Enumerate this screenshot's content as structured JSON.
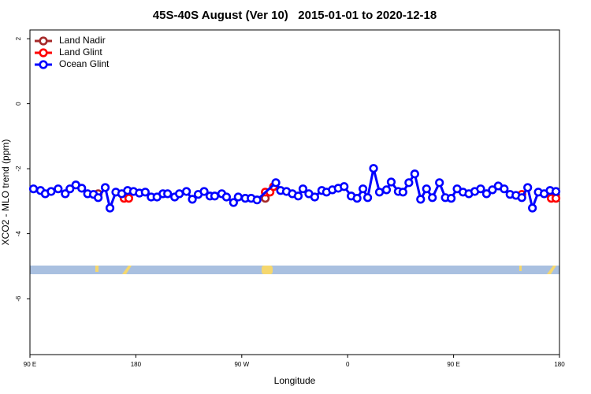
{
  "chart_data": {
    "type": "line",
    "title": "45S-40S August (Ver 10)   2015-01-01 to 2020-12-18",
    "x_label": "Longitude",
    "y_label": "XCO2 - MLO trend (ppm)",
    "xlim": [
      90,
      540
    ],
    "xticks": [
      {
        "value": 90,
        "label": "90 E"
      },
      {
        "value": 180,
        "label": "180"
      },
      {
        "value": 270,
        "label": "90 W"
      },
      {
        "value": 360,
        "label": "0"
      },
      {
        "value": 450,
        "label": "90 E"
      },
      {
        "value": 540,
        "label": "180"
      }
    ],
    "ylim": [
      -7.72,
      2.27
    ],
    "yticks": [
      2,
      0,
      -2,
      -4,
      -6
    ],
    "legend": "top-left",
    "series": [
      {
        "name": "Land Nadir",
        "color": "#a52a2a",
        "x": [
          148,
          290
        ],
        "values": [
          -2.77,
          -2.91
        ]
      },
      {
        "name": "Land Glint",
        "color": "#ff0000",
        "x": [
          170,
          174,
          290,
          294,
          297,
          508,
          533,
          537
        ],
        "values": [
          -2.91,
          -2.91,
          -2.72,
          -2.72,
          -2.55,
          -2.79,
          -2.91,
          -2.91
        ]
      },
      {
        "name": "Ocean Glint",
        "color": "#0000ff",
        "x": [
          93,
          99,
          103,
          108,
          114,
          120,
          124,
          129,
          134,
          139,
          144,
          148,
          154,
          158,
          163,
          168,
          173,
          178,
          183,
          188,
          193,
          198,
          203,
          207,
          213,
          217,
          223,
          228,
          233,
          238,
          243,
          247,
          253,
          257,
          263,
          267,
          273,
          278,
          283,
          299,
          303,
          308,
          313,
          318,
          322,
          327,
          332,
          338,
          342,
          347,
          352,
          357,
          363,
          368,
          373,
          377,
          382,
          387,
          393,
          397,
          403,
          407,
          412,
          417,
          422,
          427,
          432,
          438,
          443,
          448,
          453,
          458,
          463,
          468,
          473,
          478,
          483,
          488,
          493,
          498,
          503,
          508,
          513,
          517,
          522,
          527,
          532,
          537
        ],
        "values": [
          -2.62,
          -2.67,
          -2.77,
          -2.7,
          -2.62,
          -2.77,
          -2.62,
          -2.5,
          -2.6,
          -2.77,
          -2.79,
          -2.89,
          -2.58,
          -3.21,
          -2.72,
          -2.77,
          -2.67,
          -2.7,
          -2.75,
          -2.72,
          -2.87,
          -2.87,
          -2.77,
          -2.77,
          -2.87,
          -2.77,
          -2.7,
          -2.94,
          -2.79,
          -2.7,
          -2.84,
          -2.84,
          -2.77,
          -2.87,
          -3.04,
          -2.87,
          -2.91,
          -2.91,
          -2.96,
          -2.43,
          -2.67,
          -2.7,
          -2.77,
          -2.84,
          -2.62,
          -2.77,
          -2.87,
          -2.67,
          -2.72,
          -2.65,
          -2.6,
          -2.55,
          -2.84,
          -2.91,
          -2.62,
          -2.89,
          -1.99,
          -2.72,
          -2.65,
          -2.41,
          -2.7,
          -2.72,
          -2.43,
          -2.16,
          -2.94,
          -2.62,
          -2.89,
          -2.43,
          -2.89,
          -2.91,
          -2.62,
          -2.72,
          -2.77,
          -2.7,
          -2.62,
          -2.77,
          -2.65,
          -2.53,
          -2.62,
          -2.79,
          -2.82,
          -2.89,
          -2.58,
          -3.21,
          -2.72,
          -2.77,
          -2.67,
          -2.7
        ]
      }
    ]
  }
}
